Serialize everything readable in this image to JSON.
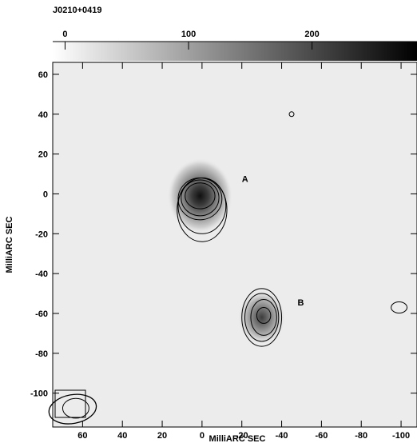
{
  "chart_data": {
    "type": "heatmap",
    "title": "J0210+0419",
    "xlabel": "MilliARC SEC",
    "ylabel": "MilliARC SEC",
    "xlim": [
      75,
      -108
    ],
    "ylim": [
      -117,
      66
    ],
    "x_ticks": [
      60,
      40,
      20,
      0,
      -20,
      -40,
      -60,
      -80,
      -100
    ],
    "y_ticks": [
      60,
      40,
      20,
      0,
      -20,
      -40,
      -60,
      -80,
      -100
    ],
    "colorbar": {
      "min": -10,
      "max": 285,
      "ticks": [
        0,
        100,
        200
      ],
      "colormap": "white-to-black"
    },
    "components": [
      {
        "label": "A",
        "x": 1,
        "y": -1,
        "peak": 240,
        "label_x": -20,
        "label_y": 6
      },
      {
        "label": "B",
        "x": -30,
        "y": -62,
        "peak": 160,
        "label_x": -48,
        "label_y": -56
      }
    ],
    "contours": [
      {
        "x": 1,
        "y": -1,
        "rx": 7.5,
        "ry": 6.5
      },
      {
        "x": 1,
        "y": -2,
        "rx": 9.5,
        "ry": 9
      },
      {
        "x": 1,
        "y": -2.5,
        "rx": 11,
        "ry": 10.5
      },
      {
        "x": 0,
        "y": -6,
        "rx": 12,
        "ry": 14
      },
      {
        "x": 0,
        "y": -8,
        "rx": 12.5,
        "ry": 16
      },
      {
        "x": -31,
        "y": -61,
        "rx": 3.5,
        "ry": 4
      },
      {
        "x": -31,
        "y": -62,
        "rx": 6.5,
        "ry": 9
      },
      {
        "x": -30,
        "y": -62,
        "rx": 8.5,
        "ry": 12
      },
      {
        "x": -30,
        "y": -62,
        "rx": 10,
        "ry": 14.5
      },
      {
        "x": -99,
        "y": -57,
        "rx": 4,
        "ry": 2.8
      },
      {
        "x": -45,
        "y": 40,
        "rx": 1.2,
        "ry": 1.2
      }
    ],
    "beam": {
      "x": 65,
      "y": -108,
      "rx": 6,
      "ry": 4.5,
      "angle": -10
    },
    "grid": false,
    "legend": "none"
  }
}
